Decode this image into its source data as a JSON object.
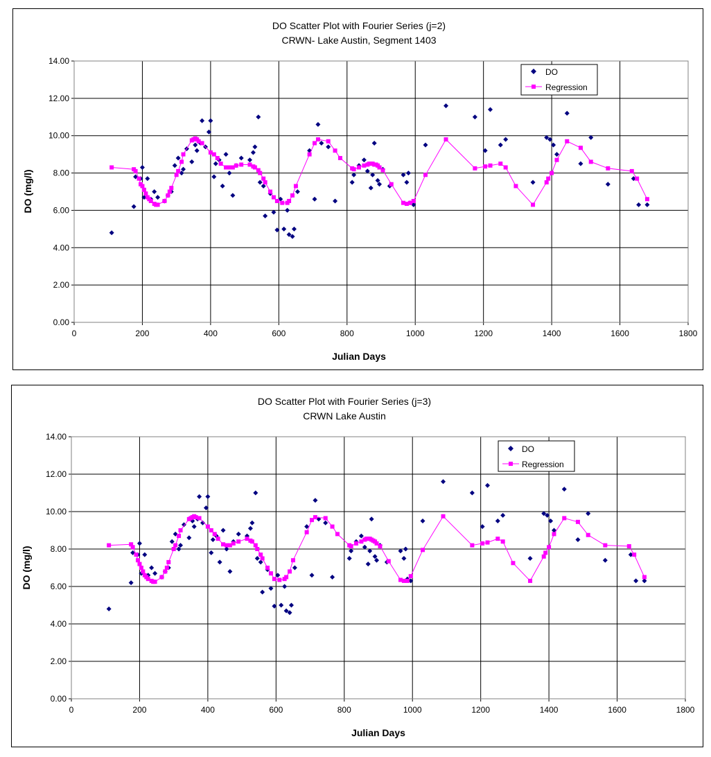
{
  "chart_data": [
    {
      "type": "scatter",
      "title": "DO Scatter Plot with Fourier Series (j=2)",
      "subtitle": "CRWN- Lake Austin, Segment 1403",
      "xlabel": "Julian Days",
      "ylabel": "DO (mg/l)",
      "xlim": [
        0,
        1800
      ],
      "ylim": [
        0,
        14
      ],
      "xticks": [
        "0",
        "200",
        "400",
        "600",
        "800",
        "1000",
        "1200",
        "1400",
        "1600",
        "1800"
      ],
      "yticks": [
        "0.00",
        "2.00",
        "4.00",
        "6.00",
        "8.00",
        "10.00",
        "12.00",
        "14.00"
      ],
      "grid": true,
      "legend_position": "top-right",
      "series": [
        {
          "name": "DO",
          "style": "markers",
          "marker": "diamond",
          "color": "#000080",
          "x": [
            110,
            175,
            180,
            195,
            200,
            205,
            215,
            225,
            235,
            245,
            265,
            275,
            285,
            295,
            305,
            315,
            320,
            330,
            345,
            355,
            360,
            370,
            375,
            385,
            395,
            400,
            410,
            415,
            425,
            435,
            445,
            455,
            465,
            475,
            490,
            515,
            525,
            530,
            540,
            545,
            555,
            560,
            575,
            585,
            595,
            605,
            615,
            625,
            630,
            640,
            645,
            655,
            690,
            705,
            715,
            725,
            745,
            765,
            815,
            820,
            835,
            850,
            860,
            870,
            875,
            880,
            890,
            895,
            905,
            925,
            965,
            975,
            980,
            985,
            995,
            1030,
            1090,
            1175,
            1205,
            1220,
            1250,
            1265,
            1345,
            1385,
            1395,
            1405,
            1415,
            1445,
            1485,
            1515,
            1565,
            1640,
            1655,
            1680
          ],
          "y": [
            4.8,
            6.2,
            7.8,
            7.7,
            8.3,
            6.7,
            7.7,
            6.6,
            7.0,
            6.7,
            6.5,
            6.8,
            7.0,
            8.4,
            8.8,
            8.0,
            8.2,
            9.3,
            8.6,
            9.5,
            9.2,
            9.6,
            10.8,
            9.4,
            10.2,
            10.8,
            7.8,
            8.5,
            8.7,
            7.3,
            9.0,
            8.0,
            6.8,
            8.4,
            8.8,
            8.7,
            9.1,
            9.4,
            11.0,
            7.5,
            7.3,
            5.7,
            6.9,
            5.9,
            4.95,
            6.6,
            5.0,
            6.0,
            4.7,
            4.6,
            5.0,
            7.0,
            9.2,
            6.6,
            10.6,
            9.6,
            9.4,
            6.5,
            7.5,
            7.9,
            8.4,
            8.7,
            8.1,
            7.2,
            7.9,
            9.6,
            7.6,
            7.4,
            8.2,
            7.3,
            7.9,
            7.5,
            8.0,
            6.4,
            6.3,
            9.5,
            11.6,
            11.0,
            9.2,
            11.4,
            9.5,
            9.8,
            7.5,
            9.9,
            9.8,
            9.5,
            9.0,
            11.2,
            8.5,
            9.9,
            7.4,
            7.7,
            6.3,
            6.3
          ]
        },
        {
          "name": "Regression",
          "style": "line+markers",
          "marker": "square",
          "color": "#ff00ff",
          "x": [
            110,
            175,
            180,
            190,
            195,
            200,
            205,
            210,
            215,
            220,
            225,
            235,
            240,
            245,
            265,
            275,
            280,
            285,
            300,
            305,
            315,
            320,
            345,
            350,
            355,
            360,
            365,
            375,
            400,
            410,
            420,
            430,
            445,
            455,
            465,
            475,
            490,
            515,
            525,
            530,
            540,
            545,
            555,
            560,
            575,
            585,
            595,
            610,
            625,
            630,
            640,
            650,
            690,
            705,
            715,
            745,
            765,
            780,
            815,
            820,
            835,
            850,
            860,
            865,
            870,
            875,
            880,
            885,
            890,
            895,
            905,
            930,
            965,
            975,
            985,
            995,
            1030,
            1090,
            1175,
            1205,
            1220,
            1250,
            1265,
            1295,
            1345,
            1385,
            1390,
            1400,
            1415,
            1445,
            1485,
            1515,
            1565,
            1635,
            1650,
            1680
          ],
          "y": [
            8.3,
            8.2,
            8.1,
            7.7,
            7.4,
            7.3,
            7.1,
            6.9,
            6.7,
            6.6,
            6.5,
            6.35,
            6.3,
            6.3,
            6.5,
            6.8,
            7.0,
            7.2,
            7.9,
            8.1,
            8.6,
            9.0,
            9.75,
            9.8,
            9.85,
            9.8,
            9.7,
            9.6,
            9.1,
            9.0,
            8.8,
            8.5,
            8.3,
            8.3,
            8.3,
            8.4,
            8.45,
            8.45,
            8.35,
            8.3,
            8.15,
            8.0,
            7.7,
            7.5,
            7.0,
            6.7,
            6.5,
            6.4,
            6.4,
            6.5,
            6.8,
            7.3,
            9.0,
            9.6,
            9.8,
            9.7,
            9.2,
            8.8,
            8.25,
            8.2,
            8.3,
            8.4,
            8.45,
            8.5,
            8.5,
            8.5,
            8.45,
            8.45,
            8.4,
            8.3,
            8.15,
            7.4,
            6.4,
            6.35,
            6.4,
            6.5,
            7.9,
            9.8,
            8.25,
            8.35,
            8.4,
            8.5,
            8.3,
            7.3,
            6.3,
            7.5,
            7.7,
            8.0,
            8.7,
            9.7,
            9.35,
            8.6,
            8.25,
            8.1,
            7.7,
            6.6
          ]
        }
      ]
    },
    {
      "type": "scatter",
      "title": "DO Scatter Plot with Fourier Series (j=3)",
      "subtitle": "CRWN Lake Austin",
      "xlabel": "Julian Days",
      "ylabel": "DO (mg/l)",
      "xlim": [
        0,
        1800
      ],
      "ylim": [
        0,
        14
      ],
      "xticks": [
        "0",
        "200",
        "400",
        "600",
        "800",
        "1000",
        "1200",
        "1400",
        "1600",
        "1800"
      ],
      "yticks": [
        "0.00",
        "2.00",
        "4.00",
        "6.00",
        "8.00",
        "10.00",
        "12.00",
        "14.00"
      ],
      "grid": true,
      "legend_position": "top-right",
      "series": [
        {
          "name": "DO",
          "style": "markers",
          "marker": "diamond",
          "color": "#000080",
          "x": [
            110,
            175,
            180,
            195,
            200,
            205,
            215,
            225,
            235,
            245,
            265,
            275,
            285,
            295,
            305,
            315,
            320,
            330,
            345,
            355,
            360,
            370,
            375,
            385,
            395,
            400,
            410,
            415,
            425,
            435,
            445,
            455,
            465,
            475,
            490,
            515,
            525,
            530,
            540,
            545,
            555,
            560,
            575,
            585,
            595,
            605,
            615,
            625,
            630,
            640,
            645,
            655,
            690,
            705,
            715,
            725,
            745,
            765,
            815,
            820,
            835,
            850,
            860,
            870,
            875,
            880,
            890,
            895,
            905,
            925,
            965,
            975,
            980,
            985,
            995,
            1030,
            1090,
            1175,
            1205,
            1220,
            1250,
            1265,
            1345,
            1385,
            1395,
            1405,
            1415,
            1445,
            1485,
            1515,
            1565,
            1640,
            1655,
            1680
          ],
          "y": [
            4.8,
            6.2,
            7.8,
            7.7,
            8.3,
            6.7,
            7.7,
            6.6,
            7.0,
            6.7,
            6.5,
            6.8,
            7.0,
            8.4,
            8.8,
            8.0,
            8.2,
            9.3,
            8.6,
            9.5,
            9.2,
            9.6,
            10.8,
            9.4,
            10.2,
            10.8,
            7.8,
            8.5,
            8.7,
            7.3,
            9.0,
            8.0,
            6.8,
            8.4,
            8.8,
            8.7,
            9.1,
            9.4,
            11.0,
            7.5,
            7.3,
            5.7,
            6.9,
            5.9,
            4.95,
            6.6,
            5.0,
            6.0,
            4.7,
            4.6,
            5.0,
            7.0,
            9.2,
            6.6,
            10.6,
            9.6,
            9.4,
            6.5,
            7.5,
            7.9,
            8.4,
            8.7,
            8.1,
            7.2,
            7.9,
            9.6,
            7.6,
            7.4,
            8.2,
            7.3,
            7.9,
            7.5,
            8.0,
            6.4,
            6.3,
            9.5,
            11.6,
            11.0,
            9.2,
            11.4,
            9.5,
            9.8,
            7.5,
            9.9,
            9.8,
            9.5,
            9.0,
            11.2,
            8.5,
            9.9,
            7.4,
            7.7,
            6.3,
            6.3
          ]
        },
        {
          "name": "Regression",
          "style": "line+markers",
          "marker": "square",
          "color": "#ff00ff",
          "x": [
            110,
            175,
            180,
            190,
            195,
            200,
            205,
            210,
            215,
            220,
            225,
            235,
            240,
            245,
            265,
            275,
            280,
            285,
            300,
            305,
            315,
            320,
            345,
            350,
            355,
            360,
            365,
            375,
            400,
            410,
            420,
            430,
            445,
            455,
            465,
            475,
            490,
            515,
            525,
            530,
            540,
            545,
            555,
            560,
            575,
            585,
            595,
            610,
            625,
            630,
            640,
            650,
            690,
            705,
            715,
            745,
            765,
            780,
            815,
            820,
            835,
            850,
            860,
            865,
            870,
            875,
            880,
            885,
            890,
            895,
            905,
            930,
            965,
            975,
            985,
            995,
            1030,
            1090,
            1175,
            1205,
            1220,
            1250,
            1265,
            1295,
            1345,
            1385,
            1390,
            1400,
            1415,
            1445,
            1485,
            1515,
            1565,
            1635,
            1650,
            1680
          ],
          "y": [
            8.2,
            8.25,
            8.1,
            7.7,
            7.4,
            7.2,
            7.0,
            6.8,
            6.6,
            6.5,
            6.4,
            6.3,
            6.25,
            6.25,
            6.5,
            6.8,
            7.0,
            7.3,
            8.0,
            8.2,
            8.7,
            9.0,
            9.6,
            9.65,
            9.7,
            9.75,
            9.7,
            9.65,
            9.2,
            9.0,
            8.8,
            8.55,
            8.25,
            8.2,
            8.2,
            8.3,
            8.4,
            8.55,
            8.45,
            8.4,
            8.2,
            8.0,
            7.7,
            7.5,
            7.0,
            6.7,
            6.4,
            6.35,
            6.4,
            6.5,
            6.8,
            7.4,
            8.9,
            9.55,
            9.7,
            9.65,
            9.2,
            8.8,
            8.2,
            8.15,
            8.3,
            8.4,
            8.5,
            8.55,
            8.55,
            8.55,
            8.5,
            8.45,
            8.4,
            8.3,
            8.15,
            7.35,
            6.35,
            6.3,
            6.3,
            6.55,
            7.95,
            9.75,
            8.2,
            8.3,
            8.35,
            8.55,
            8.4,
            7.25,
            6.3,
            7.6,
            7.8,
            8.1,
            8.8,
            9.65,
            9.45,
            8.75,
            8.2,
            8.15,
            7.7,
            6.5
          ]
        }
      ]
    }
  ]
}
